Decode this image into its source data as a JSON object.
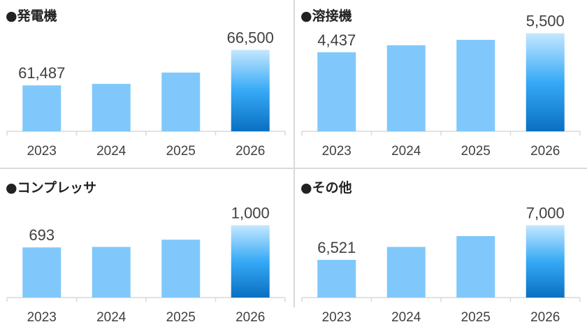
{
  "chart_data": [
    {
      "type": "bar",
      "title": "●発電機",
      "categories": [
        "2023",
        "2024",
        "2025",
        "2026"
      ],
      "values": [
        61487,
        61700,
        63300,
        66500
      ],
      "value_labels": [
        "61,487",
        null,
        null,
        "66,500"
      ],
      "ylim": [
        55000,
        69600
      ],
      "color": "#80c8fb",
      "highlight_index": 3,
      "highlight_gradient": [
        "#c4e7ff",
        "#36aaf6",
        "#0a6fc2"
      ]
    },
    {
      "type": "bar",
      "title": "●溶接機",
      "categories": [
        "2023",
        "2024",
        "2025",
        "2026"
      ],
      "values": [
        4437,
        4830,
        5130,
        5500
      ],
      "value_labels": [
        "4,437",
        null,
        null,
        "5,500"
      ],
      "ylim": [
        0,
        5800
      ],
      "color": "#80c8fb",
      "highlight_index": 3,
      "highlight_gradient": [
        "#c4e7ff",
        "#36aaf6",
        "#0a6fc2"
      ]
    },
    {
      "type": "bar",
      "title": "●コンプレッサ",
      "categories": [
        "2023",
        "2024",
        "2025",
        "2026"
      ],
      "values": [
        693,
        700,
        800,
        1000
      ],
      "value_labels": [
        "693",
        null,
        null,
        "1,000"
      ],
      "ylim": [
        0,
        1400
      ],
      "color": "#80c8fb",
      "highlight_index": 3,
      "highlight_gradient": [
        "#c4e7ff",
        "#36aaf6",
        "#0a6fc2"
      ]
    },
    {
      "type": "bar",
      "title": "●その他",
      "categories": [
        "2023",
        "2024",
        "2025",
        "2026"
      ],
      "values": [
        6521,
        6700,
        6850,
        7000
      ],
      "value_labels": [
        "6,521",
        null,
        null,
        "7,000"
      ],
      "ylim": [
        6000,
        7400
      ],
      "color": "#80c8fb",
      "highlight_index": 3,
      "highlight_gradient": [
        "#c4e7ff",
        "#36aaf6",
        "#0a6fc2"
      ]
    }
  ]
}
